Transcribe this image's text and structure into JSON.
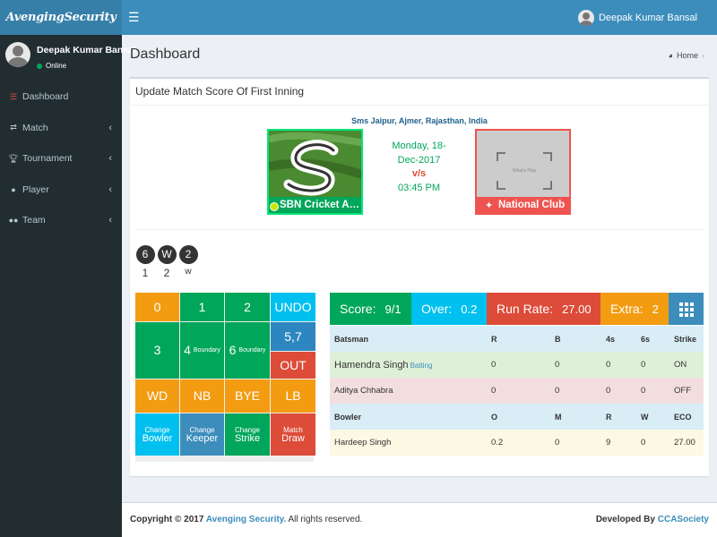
{
  "app": {
    "logo": "AvengingSecurity",
    "menu_icon": "bars-icon"
  },
  "user": {
    "name": "Deepak Kumar Bansal",
    "status": "Online"
  },
  "sidebar": {
    "items": [
      {
        "label": "Dashboard",
        "icon": "sliders-icon"
      },
      {
        "label": "Match",
        "icon": "shuffle-icon",
        "chevron": "‹"
      },
      {
        "label": "Tournament",
        "icon": "trophy-icon",
        "chevron": "‹"
      },
      {
        "label": "Player",
        "icon": "user-icon",
        "chevron": "‹"
      },
      {
        "label": "Team",
        "icon": "users-icon",
        "chevron": "‹"
      }
    ]
  },
  "page": {
    "title": "Dashboard",
    "breadcrumb_home": "Home",
    "breadcrumb_sep": "›"
  },
  "box": {
    "title": "Update Match Score Of First Inning"
  },
  "match": {
    "venue": "Sms Jaipur, Ajmer, Rajasthan, India",
    "date_line1": "Monday, 18-",
    "date_line2": "Dec-2017",
    "vs": "v/s",
    "time": "03:45 PM",
    "team1": "SBN Cricket Ac...",
    "team2": "National Club",
    "team2_placeholder": "What's Play"
  },
  "balls": [
    {
      "value": "6",
      "label": "1"
    },
    {
      "value": "W",
      "label": "2"
    },
    {
      "value": "2",
      "label": "w"
    }
  ],
  "keypad": {
    "k0": "0",
    "k1": "1",
    "k2": "2",
    "undo": "UNDO",
    "k57": "5,7",
    "k3": "3",
    "k4": "4",
    "k6": "6",
    "boundary": "Boundary",
    "out": "OUT",
    "wd": "WD",
    "nb": "NB",
    "bye": "BYE",
    "lb": "LB",
    "change": "Change",
    "bowler": "Bowler",
    "keeper": "Keeper",
    "strike": "Strike",
    "match": "Match",
    "draw": "Draw"
  },
  "scorebar": {
    "score_label": "Score:",
    "score": "9/1",
    "over_label": "Over:",
    "over": "0.2",
    "rr_label": "Run Rate:",
    "rr": "27.00",
    "extra_label": "Extra:",
    "extra": "2"
  },
  "batting": {
    "headers": [
      "Batsman",
      "R",
      "B",
      "4s",
      "6s",
      "Strike"
    ],
    "rows": [
      {
        "name": "Hamendra Singh",
        "tag": "Batting",
        "r": "0",
        "b": "0",
        "f": "0",
        "s": "0",
        "strike": "ON"
      },
      {
        "name": "Aditya Chhabra",
        "tag": "",
        "r": "0",
        "b": "0",
        "f": "0",
        "s": "0",
        "strike": "OFF"
      }
    ]
  },
  "bowling": {
    "headers": [
      "Bowler",
      "O",
      "M",
      "R",
      "W",
      "ECO"
    ],
    "rows": [
      {
        "name": "Hardeep Singh",
        "o": "0.2",
        "m": "0",
        "r": "9",
        "w": "0",
        "eco": "27.00"
      }
    ]
  },
  "footer": {
    "copy": "Copyright © 2017",
    "brand": "Avenging Security.",
    "rights": " All rights reserved.",
    "dev": "Developed By",
    "dev_link": "CCASociety"
  },
  "colors": {
    "header": "#3c8dbc",
    "sidebar": "#222d32",
    "green": "#00a65a",
    "orange": "#f39c12",
    "red": "#dd4b39",
    "aqua": "#00c0ef"
  }
}
